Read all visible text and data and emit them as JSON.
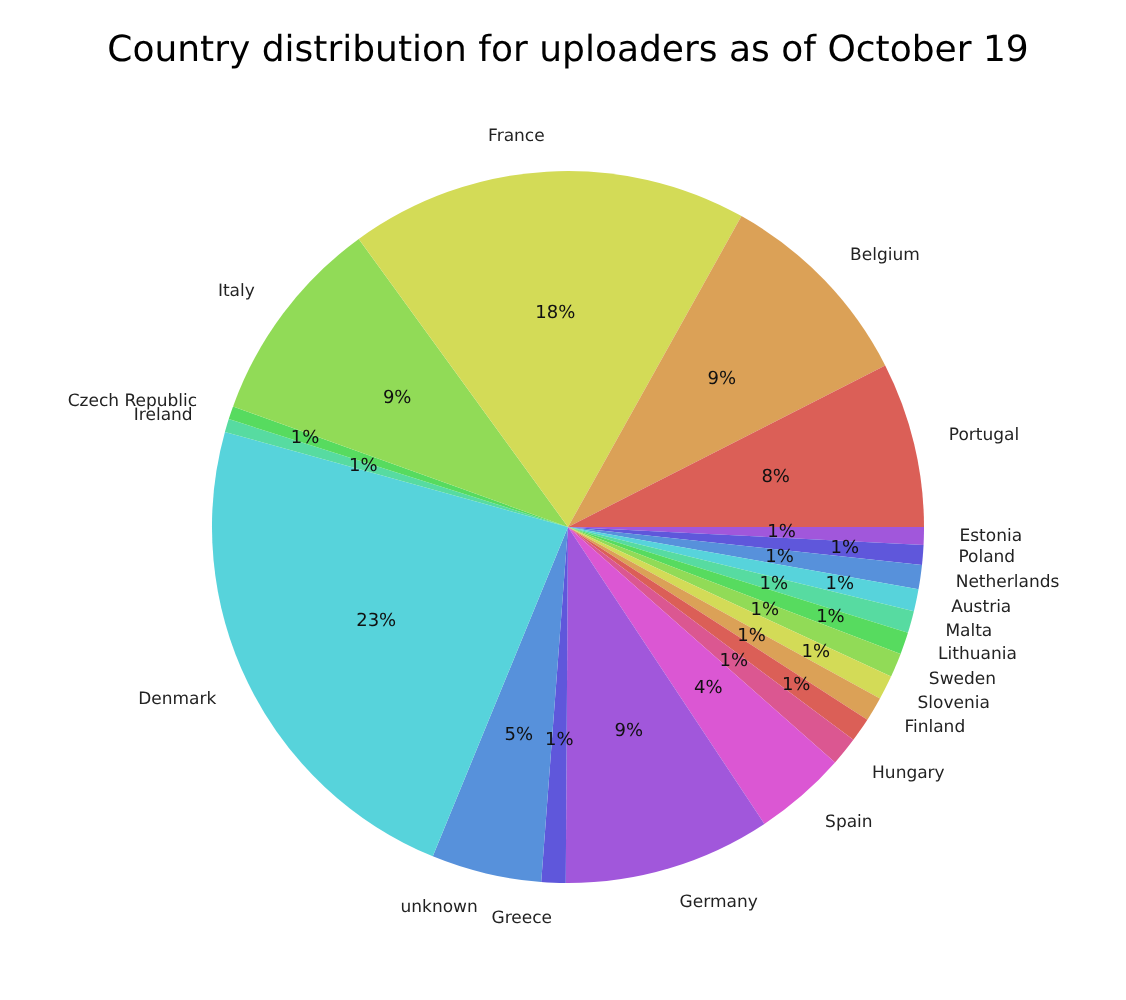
{
  "chart_data": {
    "type": "pie",
    "title": "Country distribution for uploaders as of October 19",
    "categories": [
      "Estonia",
      "Poland",
      "Netherlands",
      "Austria",
      "Malta",
      "Lithuania",
      "Sweden",
      "Slovenia",
      "Finland",
      null,
      "Hungary",
      "Spain",
      "Germany",
      "Greece",
      "unknown",
      "Denmark",
      "Ireland",
      "Czech Republic",
      "Italy",
      "France",
      "Belgium",
      "Portugal"
    ],
    "values": [
      0.8,
      0.9,
      1.1,
      1.0,
      1.0,
      1.0,
      1.1,
      1.1,
      1.1,
      1.1,
      1.3,
      4.2,
      9.4,
      1.1,
      5.0,
      23.1,
      0.6,
      0.6,
      9.5,
      18.1,
      9.4,
      7.5
    ],
    "colors": [
      "#a157db",
      "#5f57db",
      "#5791db",
      "#57d3db",
      "#57dba1",
      "#57db5f",
      "#91db57",
      "#d3db57",
      "#dba157",
      "#db5f57",
      "#db5791",
      "#db57d3",
      "#a157db",
      "#5f57db",
      "#5791db",
      "#57d3db",
      "#57dba1",
      "#57db5f",
      "#91db57",
      "#d3db57",
      "#dba157",
      "#db5f57"
    ],
    "value_labels": [
      "1%",
      "1%",
      "1%",
      "1%",
      "1%",
      "1%",
      "1%",
      "1%",
      "1%",
      "1%",
      "1%",
      "4%",
      "9%",
      "1%",
      "5%",
      "23%",
      "1%",
      "1%",
      "9%",
      "18%",
      "9%",
      "8%"
    ]
  }
}
